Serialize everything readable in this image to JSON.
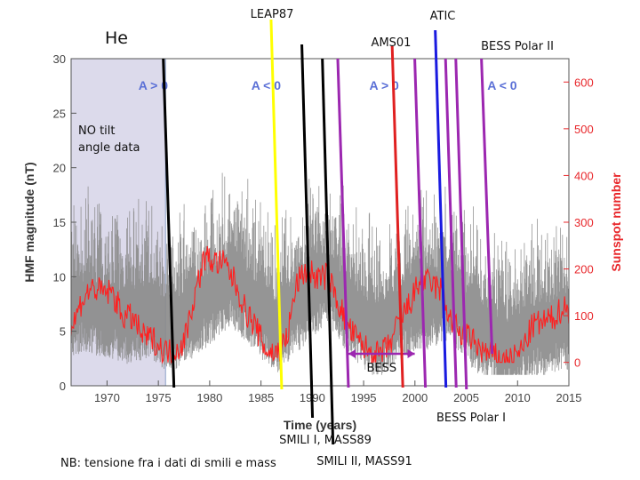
{
  "labels": {
    "he": "He",
    "no_tilt": "NO tilt\nangle data",
    "note": "NB: tensione fra i dati di smili e mass"
  },
  "chart_data": {
    "type": "line",
    "xlabel": "Time (years)",
    "ylabel_left": "HMF magnitude (nT)",
    "ylabel_right": "Sunspot number",
    "xlim": [
      1966.5,
      2015
    ],
    "ylim_left": [
      0,
      30
    ],
    "ylim_right": [
      -50,
      650
    ],
    "x_ticks": [
      1970,
      1975,
      1980,
      1985,
      1990,
      1995,
      2000,
      2005,
      2010,
      2015
    ],
    "y_ticks_left": [
      0,
      5,
      10,
      15,
      20,
      25,
      30
    ],
    "y_ticks_right": [
      0,
      100,
      200,
      300,
      400,
      500,
      600
    ],
    "colors": {
      "hmf": "#8a8a8a",
      "sunspot": "#ff2020",
      "axis_right": "#e8262a",
      "shade": "#dcdaeb"
    },
    "shaded_region": {
      "x": [
        1966.5,
        1975.7
      ],
      "label": "NO tilt angle data"
    },
    "polarity": [
      {
        "label": "A > 0",
        "x": 1974.5
      },
      {
        "label": "A < 0",
        "x": 1985.5
      },
      {
        "label": "A > 0",
        "x": 1997
      },
      {
        "label": "A < 0",
        "x": 2008.5
      }
    ],
    "series": [
      {
        "name": "Sunspot number",
        "axis": "right",
        "x": [
          1966.5,
          1967.5,
          1968.5,
          1969.5,
          1970.5,
          1971.5,
          1972.5,
          1973.5,
          1974.5,
          1975.5,
          1976.5,
          1977.5,
          1978.5,
          1979.5,
          1980.5,
          1981.5,
          1982.5,
          1983.5,
          1984.5,
          1985.5,
          1986.5,
          1987.5,
          1988.5,
          1989.5,
          1990.5,
          1991.5,
          1992.5,
          1993.5,
          1994.5,
          1995.5,
          1996.5,
          1997.5,
          1998.5,
          1999.5,
          2000.5,
          2001.5,
          2002.5,
          2003.5,
          2004.5,
          2005.5,
          2006.5,
          2007.5,
          2008.5,
          2009.5,
          2010.5,
          2011.5,
          2012.5,
          2013.5,
          2014.5,
          2015
        ],
        "values": [
          70,
          130,
          160,
          150,
          150,
          100,
          95,
          55,
          50,
          25,
          20,
          45,
          140,
          225,
          215,
          210,
          170,
          110,
          75,
          25,
          20,
          50,
          170,
          200,
          180,
          185,
          130,
          75,
          45,
          25,
          15,
          35,
          90,
          125,
          175,
          170,
          155,
          90,
          60,
          50,
          25,
          15,
          5,
          5,
          30,
          80,
          85,
          95,
          120,
          110
        ]
      },
      {
        "name": "HMF magnitude",
        "axis": "left",
        "x": [
          1966.5,
          1968,
          1970,
          1972,
          1974,
          1975.5,
          1977,
          1979,
          1981,
          1982,
          1983,
          1985,
          1986.5,
          1988,
          1990,
          1991.5,
          1993,
          1995,
          1996.5,
          1998,
          2000,
          2002,
          2003.5,
          2005,
          2007,
          2009,
          2011,
          2013,
          2015
        ],
        "values": [
          7.5,
          8,
          7.5,
          7,
          7.5,
          6.5,
          6.5,
          8,
          9.5,
          10.5,
          9.5,
          7.5,
          6,
          7.5,
          9.5,
          10.5,
          8.5,
          6.5,
          5.5,
          7,
          8,
          8.5,
          9,
          7,
          5.5,
          4,
          5.5,
          6,
          6.5
        ]
      }
    ],
    "experiments": [
      {
        "label": "LEAP87",
        "x": 1986.5,
        "color": "#ffff00"
      },
      {
        "label": "SMILI I, MASS89",
        "x": 1989.5,
        "color": "#000000"
      },
      {
        "label": "SMILI II, MASS91",
        "x": 1991.5,
        "color": "#000000"
      },
      {
        "label": "AMS01",
        "x": 1998.3,
        "color": "#e02020"
      },
      {
        "label": "ATIC",
        "x": 2002.5,
        "color": "#1a1ae0"
      },
      {
        "label": "BESS Polar II",
        "x": 2007,
        "color": "#9c27b0"
      },
      {
        "label": "BESS Polar I",
        "x": 2004.5,
        "color": "#9c27b0"
      },
      {
        "label": "",
        "x": 1976,
        "color": "#000000"
      },
      {
        "label": "",
        "x": 1993,
        "color": "#9c27b0"
      },
      {
        "label": "",
        "x": 2000.5,
        "color": "#9c27b0"
      },
      {
        "label": "",
        "x": 2003.5,
        "color": "#9c27b0"
      }
    ],
    "bess_range": {
      "label": "BESS",
      "x": [
        1993,
        2000.5
      ]
    }
  }
}
